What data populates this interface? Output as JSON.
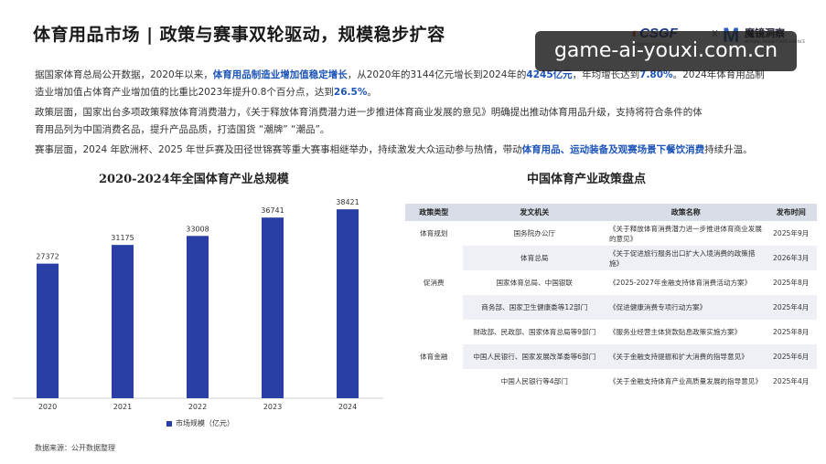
{
  "header": {
    "title": "体育用品市场 | 政策与赛事双轮驱动，规模稳步扩容",
    "logo_left": "CSGF",
    "logo_left_sub": "中国体育用品业联合会",
    "logo_sep": "X",
    "logo_right": "魔镜洞察",
    "logo_right_sub": "MOOJING MARKET INTELLIGENCE"
  },
  "watermark": {
    "text": "game-ai-youxi.com.cn"
  },
  "paragraphs": [
    {
      "segments": [
        {
          "text": "据国家体育总局公开数据，2020年以来，",
          "hl": false
        },
        {
          "text": "体育用品制造业增加值稳定增长",
          "hl": true
        },
        {
          "text": "，从2020年的3144亿元增长到2024年的",
          "hl": false
        },
        {
          "text": "4245亿元",
          "hl": true
        },
        {
          "text": "，年均增长达到",
          "hl": false
        },
        {
          "text": "7.80%",
          "hl": true
        },
        {
          "text": "。2024年体育用品制",
          "hl": false
        }
      ]
    },
    {
      "segments": [
        {
          "text": "造业增加值占体育产业增加值的比重比2023年提升0.8个百分点，达到",
          "hl": false
        },
        {
          "text": "26.5%",
          "hl": true
        },
        {
          "text": "。",
          "hl": false
        }
      ]
    },
    {
      "segments": [
        {
          "text": "政策层面，国家出台多项政策释放体育消费潜力，《关于释放体育消费潜力进一步推进体育商业发展的意见》明确提出推动体育用品升级，支持将符合条件的体",
          "hl": false
        }
      ]
    },
    {
      "segments": [
        {
          "text": "育用品列为中国消费名品，提升产品品质，打造国货 “潮牌” “潮品”。",
          "hl": false
        }
      ]
    },
    {
      "segments": [
        {
          "text": "赛事层面，2024 年欧洲杯、2025 年世乒赛及田径世锦赛等重大赛事相继举办，持续激发大众运动参与热情，带动",
          "hl": false
        },
        {
          "text": "体育用品、运动装备及观赛场景下餐饮消费",
          "hl": true
        },
        {
          "text": "持续升温。",
          "hl": false
        }
      ]
    }
  ],
  "chart_data": {
    "type": "bar",
    "title": "2020-2024年全国体育产业总规模",
    "categories": [
      "2020",
      "2021",
      "2022",
      "2023",
      "2024"
    ],
    "series": [
      {
        "name": "市场规模（亿元）",
        "values": [
          27372,
          31175,
          33008,
          36741,
          38421
        ]
      }
    ],
    "color": "#2a3fa5",
    "legend_position": "bottom"
  },
  "source": "数据来源：公开数据整理",
  "policy_table": {
    "title": "中国体育产业政策盘点",
    "headers": [
      "政策类型",
      "发文机关",
      "政策名称",
      "发布时间"
    ],
    "groups": [
      {
        "type": "体育规划",
        "rows": [
          {
            "agency": "国务院办公厅",
            "name": "《关于释放体育消费潜力进一步推进体育商业发展的意见》",
            "date": "2025年9月"
          }
        ]
      },
      {
        "type": "促消费",
        "rows": [
          {
            "agency": "体育总局",
            "name": "《关于促进旅行服务出口扩大入境消费的政策措施》",
            "date": "2026年3月"
          },
          {
            "agency": "国家体育总局、中国银联",
            "name": "《2025-2027年金融支持体育消费活动方案》",
            "date": "2025年8月"
          },
          {
            "agency": "商务部、国家卫生健康委等12部门",
            "name": "《促进健康消费专项行动方案》",
            "date": "2025年4月"
          }
        ]
      },
      {
        "type": "体育金融",
        "rows": [
          {
            "agency": "财政部、民政部、国家体育总局等9部门",
            "name": "《服务业经营主体贷款贴息政策实施方案》",
            "date": "2025年8月"
          },
          {
            "agency": "中国人民银行、国家发展改革委等6部门",
            "name": "《关于金融支持提振和扩大消费的指导意见》",
            "date": "2025年6月"
          },
          {
            "agency": "中国人民银行等4部门",
            "name": "《关于金融支持体育产业高质量发展的指导意见》",
            "date": "2025年4月"
          }
        ]
      }
    ]
  }
}
